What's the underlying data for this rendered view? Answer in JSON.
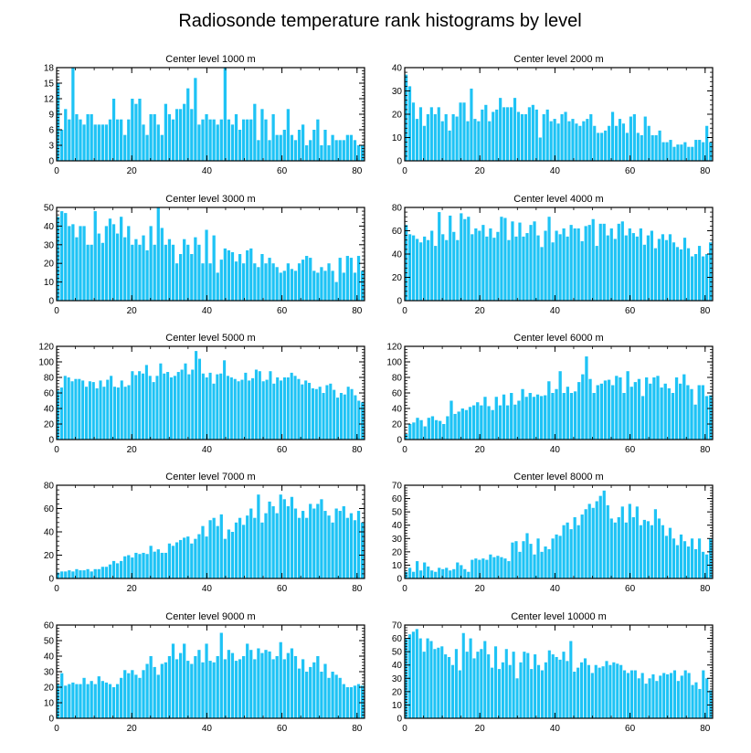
{
  "figure_title": "Radiosonde temperature rank histograms by level",
  "bar_color": "#1ec3f5",
  "chart_data": [
    {
      "type": "bar",
      "title": "Center level 1000 m",
      "xlim": [
        0,
        82
      ],
      "ylim": [
        0,
        18
      ],
      "xticks": [
        0,
        20,
        40,
        60,
        80
      ],
      "yticks": [
        0,
        3,
        6,
        9,
        12,
        15,
        18
      ],
      "values": [
        15,
        6,
        10,
        8,
        18,
        9,
        8,
        7,
        9,
        9,
        7,
        7,
        7,
        7,
        8,
        12,
        8,
        8,
        5,
        8,
        12,
        11,
        12,
        7,
        5,
        9,
        9,
        7,
        5,
        11,
        9,
        8,
        10,
        10,
        11,
        14,
        10,
        16,
        7,
        8,
        9,
        8,
        8,
        7,
        8,
        18,
        8,
        7,
        9,
        6,
        8,
        8,
        8,
        11,
        4,
        10,
        8,
        4,
        9,
        5,
        5,
        6,
        10,
        5,
        4,
        6,
        7,
        3,
        4,
        6,
        8,
        3,
        6,
        3,
        5,
        4,
        4,
        4,
        5,
        5,
        4,
        3,
        3
      ]
    },
    {
      "type": "bar",
      "title": "Center level 2000 m",
      "xlim": [
        0,
        82
      ],
      "ylim": [
        0,
        40
      ],
      "xticks": [
        0,
        20,
        40,
        60,
        80
      ],
      "yticks": [
        0,
        10,
        20,
        30,
        40
      ],
      "values": [
        37,
        32,
        25,
        18,
        23,
        15,
        20,
        23,
        20,
        23,
        17,
        20,
        13,
        20,
        19,
        25,
        25,
        17,
        31,
        18,
        17,
        22,
        24,
        17,
        21,
        22,
        27,
        23,
        23,
        23,
        27,
        21,
        20,
        20,
        23,
        24,
        22,
        10,
        20,
        22,
        17,
        18,
        16,
        20,
        21,
        17,
        18,
        16,
        15,
        17,
        18,
        20,
        15,
        12,
        12,
        13,
        15,
        21,
        15,
        18,
        16,
        12,
        19,
        20,
        12,
        11,
        19,
        15,
        11,
        11,
        13,
        8,
        8,
        9,
        6,
        7,
        7,
        8,
        6,
        6,
        9,
        9,
        8,
        15,
        8
      ]
    },
    {
      "type": "bar",
      "title": "Center level 3000 m",
      "xlim": [
        0,
        82
      ],
      "ylim": [
        0,
        50
      ],
      "xticks": [
        0,
        20,
        40,
        60,
        80
      ],
      "yticks": [
        0,
        10,
        20,
        30,
        40,
        50
      ],
      "values": [
        45,
        48,
        47,
        40,
        41,
        34,
        40,
        40,
        30,
        30,
        48,
        36,
        31,
        40,
        44,
        41,
        36,
        45,
        34,
        40,
        30,
        33,
        30,
        35,
        27,
        40,
        30,
        50,
        39,
        30,
        33,
        30,
        20,
        25,
        33,
        30,
        25,
        34,
        30,
        20,
        38,
        20,
        35,
        15,
        22,
        28,
        27,
        26,
        21,
        25,
        20,
        27,
        28,
        20,
        18,
        25,
        20,
        23,
        20,
        18,
        15,
        16,
        20,
        17,
        16,
        20,
        22,
        24,
        23,
        16,
        15,
        18,
        16,
        20,
        16,
        10,
        23,
        15,
        24,
        23,
        15,
        24,
        16
      ]
    },
    {
      "type": "bar",
      "title": "Center level 4000 m",
      "xlim": [
        0,
        82
      ],
      "ylim": [
        0,
        80
      ],
      "xticks": [
        0,
        20,
        40,
        60,
        80
      ],
      "yticks": [
        0,
        20,
        40,
        60,
        80
      ],
      "values": [
        65,
        57,
        56,
        53,
        50,
        55,
        52,
        60,
        47,
        76,
        57,
        52,
        73,
        59,
        52,
        75,
        70,
        72,
        57,
        62,
        60,
        65,
        55,
        62,
        54,
        59,
        72,
        71,
        52,
        68,
        55,
        67,
        55,
        58,
        65,
        68,
        56,
        46,
        60,
        72,
        50,
        60,
        57,
        62,
        55,
        65,
        62,
        62,
        51,
        64,
        65,
        70,
        47,
        66,
        66,
        56,
        62,
        53,
        66,
        68,
        56,
        62,
        58,
        55,
        62,
        48,
        56,
        60,
        45,
        53,
        57,
        52,
        57,
        50,
        46,
        44,
        54,
        45,
        38,
        40,
        47,
        38,
        40,
        50
      ]
    },
    {
      "type": "bar",
      "title": "Center level 5000 m",
      "xlim": [
        0,
        82
      ],
      "ylim": [
        0,
        120
      ],
      "xticks": [
        0,
        20,
        40,
        60,
        80
      ],
      "yticks": [
        0,
        20,
        40,
        60,
        80,
        100,
        120
      ],
      "values": [
        63,
        67,
        82,
        80,
        75,
        78,
        78,
        76,
        68,
        75,
        74,
        66,
        76,
        68,
        77,
        82,
        68,
        67,
        76,
        68,
        70,
        88,
        83,
        88,
        85,
        96,
        82,
        74,
        82,
        98,
        85,
        87,
        80,
        82,
        87,
        90,
        98,
        84,
        90,
        114,
        104,
        85,
        80,
        86,
        72,
        84,
        85,
        102,
        82,
        80,
        78,
        75,
        77,
        86,
        76,
        79,
        90,
        88,
        75,
        77,
        88,
        72,
        80,
        76,
        80,
        80,
        86,
        82,
        78,
        71,
        76,
        73,
        66,
        65,
        68,
        60,
        70,
        72,
        64,
        54,
        60,
        58,
        68,
        65,
        57,
        50,
        48
      ]
    },
    {
      "type": "bar",
      "title": "Center level 6000 m",
      "xlim": [
        0,
        82
      ],
      "ylim": [
        0,
        120
      ],
      "xticks": [
        0,
        20,
        40,
        60,
        80
      ],
      "yticks": [
        0,
        20,
        40,
        60,
        80,
        100,
        120
      ],
      "values": [
        7,
        20,
        22,
        28,
        25,
        17,
        28,
        30,
        25,
        24,
        20,
        30,
        50,
        33,
        36,
        40,
        38,
        42,
        44,
        48,
        44,
        55,
        43,
        38,
        55,
        44,
        58,
        44,
        60,
        45,
        50,
        65,
        55,
        60,
        55,
        58,
        56,
        57,
        75,
        60,
        65,
        88,
        60,
        68,
        60,
        62,
        74,
        84,
        107,
        78,
        60,
        70,
        72,
        76,
        77,
        70,
        82,
        80,
        60,
        88,
        68,
        74,
        78,
        56,
        80,
        72,
        80,
        82,
        67,
        72,
        66,
        60,
        80,
        72,
        84,
        70,
        65,
        45,
        70,
        70,
        56,
        57
      ]
    },
    {
      "type": "bar",
      "title": "Center level 7000 m",
      "xlim": [
        0,
        82
      ],
      "ylim": [
        0,
        80
      ],
      "xticks": [
        0,
        20,
        40,
        60,
        80
      ],
      "yticks": [
        0,
        20,
        40,
        60,
        80
      ],
      "values": [
        5,
        6,
        6,
        7,
        6,
        8,
        7,
        7,
        8,
        6,
        8,
        8,
        10,
        10,
        12,
        15,
        13,
        15,
        19,
        20,
        18,
        22,
        21,
        22,
        21,
        28,
        23,
        25,
        22,
        22,
        30,
        28,
        31,
        33,
        35,
        36,
        30,
        34,
        38,
        45,
        36,
        50,
        52,
        45,
        55,
        34,
        42,
        40,
        48,
        52,
        46,
        54,
        60,
        52,
        72,
        48,
        56,
        66,
        62,
        56,
        72,
        68,
        62,
        70,
        60,
        52,
        58,
        52,
        64,
        60,
        64,
        68,
        58,
        54,
        48,
        60,
        58,
        62,
        52,
        56,
        50,
        58,
        48
      ]
    },
    {
      "type": "bar",
      "title": "Center level 8000 m",
      "xlim": [
        0,
        82
      ],
      "ylim": [
        0,
        70
      ],
      "xticks": [
        0,
        20,
        40,
        60,
        80
      ],
      "yticks": [
        0,
        10,
        20,
        30,
        40,
        50,
        60,
        70
      ],
      "values": [
        5,
        8,
        5,
        13,
        6,
        12,
        9,
        6,
        5,
        8,
        7,
        8,
        6,
        7,
        12,
        10,
        7,
        5,
        14,
        15,
        14,
        15,
        14,
        18,
        16,
        17,
        16,
        15,
        13,
        27,
        28,
        20,
        28,
        34,
        26,
        18,
        30,
        20,
        24,
        22,
        30,
        33,
        32,
        40,
        42,
        37,
        46,
        40,
        48,
        52,
        56,
        53,
        58,
        62,
        66,
        55,
        45,
        42,
        46,
        54,
        42,
        56,
        46,
        54,
        40,
        44,
        43,
        40,
        52,
        45,
        40,
        32,
        38,
        30,
        25,
        33,
        28,
        24,
        30,
        22,
        30,
        20,
        18,
        30
      ]
    },
    {
      "type": "bar",
      "title": "Center level 9000 m",
      "xlim": [
        0,
        82
      ],
      "ylim": [
        0,
        60
      ],
      "xticks": [
        0,
        20,
        40,
        60,
        80
      ],
      "yticks": [
        0,
        10,
        20,
        30,
        40,
        50,
        60
      ],
      "values": [
        22,
        29,
        21,
        22,
        23,
        22,
        22,
        26,
        22,
        24,
        22,
        27,
        24,
        23,
        22,
        20,
        22,
        26,
        31,
        29,
        31,
        28,
        26,
        31,
        35,
        40,
        33,
        28,
        35,
        36,
        40,
        48,
        38,
        42,
        48,
        37,
        35,
        40,
        44,
        36,
        48,
        37,
        36,
        40,
        55,
        38,
        44,
        42,
        37,
        38,
        40,
        48,
        44,
        38,
        45,
        42,
        44,
        43,
        38,
        40,
        49,
        38,
        42,
        45,
        40,
        32,
        38,
        30,
        33,
        36,
        40,
        30,
        35,
        26,
        30,
        28,
        26,
        22,
        20,
        20,
        21,
        22,
        21
      ]
    },
    {
      "type": "bar",
      "title": "Center level 10000 m",
      "xlim": [
        0,
        82
      ],
      "ylim": [
        0,
        70
      ],
      "xticks": [
        0,
        20,
        40,
        60,
        80
      ],
      "yticks": [
        0,
        10,
        20,
        30,
        40,
        50,
        60,
        70
      ],
      "values": [
        60,
        63,
        65,
        67,
        60,
        50,
        60,
        58,
        52,
        53,
        54,
        48,
        46,
        40,
        52,
        36,
        64,
        50,
        60,
        45,
        50,
        52,
        58,
        48,
        38,
        54,
        37,
        42,
        52,
        40,
        50,
        30,
        42,
        50,
        49,
        37,
        48,
        40,
        36,
        42,
        51,
        48,
        46,
        44,
        50,
        43,
        58,
        35,
        38,
        42,
        45,
        40,
        34,
        40,
        38,
        39,
        43,
        40,
        42,
        41,
        40,
        36,
        34,
        36,
        36,
        30,
        34,
        26,
        30,
        33,
        28,
        32,
        34,
        33,
        34,
        36,
        28,
        32,
        36,
        34,
        25,
        27,
        22,
        36,
        30,
        21
      ]
    }
  ]
}
